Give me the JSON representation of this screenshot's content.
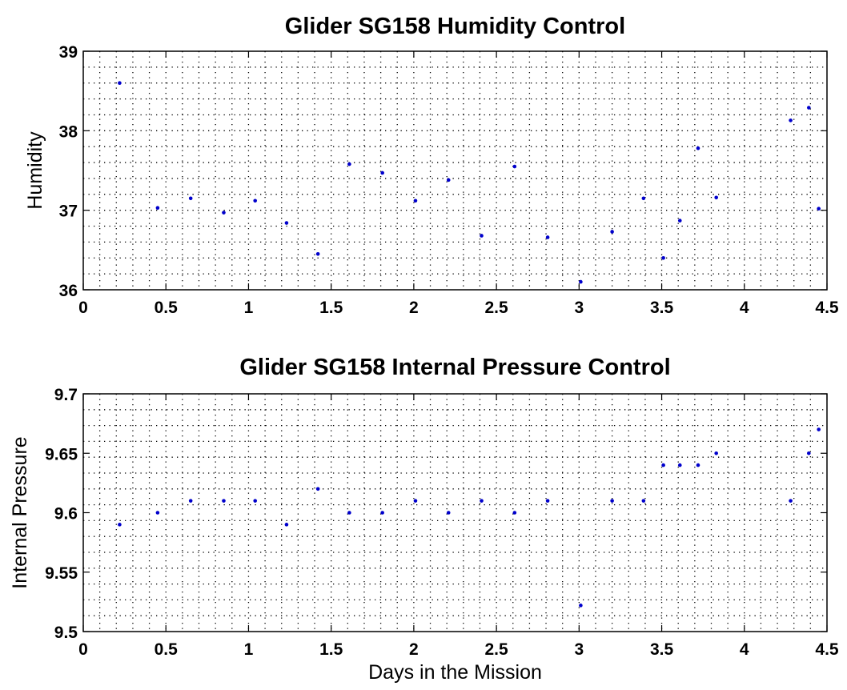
{
  "chart_data": [
    {
      "type": "scatter",
      "title": "Glider SG158 Humidity Control",
      "xlabel": "",
      "ylabel": "Humidity",
      "xlim": [
        0,
        4.5
      ],
      "ylim": [
        36,
        39
      ],
      "xticks": [
        "0",
        "0.5",
        "1",
        "1.5",
        "2",
        "2.5",
        "3",
        "3.5",
        "4",
        "4.5"
      ],
      "yticks": [
        "36",
        "37",
        "38",
        "39"
      ],
      "grid": true,
      "marker_color": "#0000cc",
      "series": [
        {
          "x": [
            0.22,
            0.45,
            0.65,
            0.85,
            1.04,
            1.23,
            1.42,
            1.61,
            1.81,
            2.01,
            2.21,
            2.41,
            2.61,
            2.81,
            3.01,
            3.2,
            3.39,
            3.51,
            3.61,
            3.72,
            3.83,
            4.28,
            4.39,
            4.45
          ],
          "y": [
            38.6,
            37.03,
            37.15,
            36.97,
            37.12,
            36.84,
            36.45,
            37.58,
            37.47,
            37.12,
            37.38,
            36.68,
            37.55,
            36.66,
            36.1,
            36.73,
            37.15,
            36.4,
            36.87,
            37.78,
            37.16,
            38.13,
            38.29,
            37.02
          ]
        }
      ]
    },
    {
      "type": "scatter",
      "title": "Glider SG158 Internal Pressure Control",
      "xlabel": "Days in the Mission",
      "ylabel": "Internal Pressure",
      "xlim": [
        0,
        4.5
      ],
      "ylim": [
        9.5,
        9.7
      ],
      "xticks": [
        "0",
        "0.5",
        "1",
        "1.5",
        "2",
        "2.5",
        "3",
        "3.5",
        "4",
        "4.5"
      ],
      "yticks": [
        "9.5",
        "9.55",
        "9.6",
        "9.65",
        "9.7"
      ],
      "grid": true,
      "marker_color": "#0000cc",
      "series": [
        {
          "x": [
            0.22,
            0.45,
            0.65,
            0.85,
            1.04,
            1.23,
            1.42,
            1.61,
            1.81,
            2.01,
            2.21,
            2.41,
            2.61,
            2.81,
            3.01,
            3.2,
            3.39,
            3.51,
            3.61,
            3.72,
            3.83,
            4.28,
            4.39,
            4.45
          ],
          "y": [
            9.59,
            9.6,
            9.61,
            9.61,
            9.61,
            9.59,
            9.62,
            9.6,
            9.6,
            9.61,
            9.6,
            9.61,
            9.6,
            9.61,
            9.522,
            9.61,
            9.61,
            9.64,
            9.64,
            9.64,
            9.65,
            9.61,
            9.65,
            9.67
          ]
        }
      ]
    }
  ]
}
